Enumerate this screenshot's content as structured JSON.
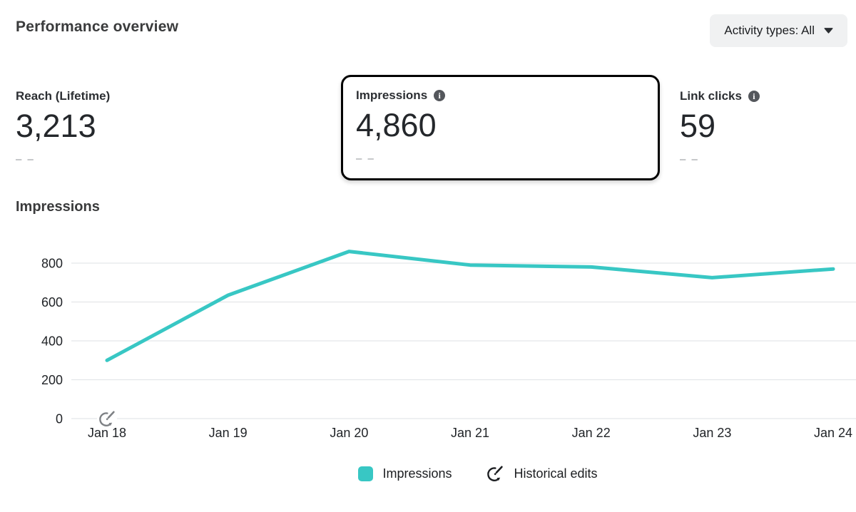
{
  "header": {
    "title": "Performance overview",
    "activity_filter_label": "Activity types: All"
  },
  "icons": {
    "info_glyph": "i"
  },
  "metrics": [
    {
      "label": "Reach (Lifetime)",
      "value": "3,213",
      "delta": "– –",
      "has_info": false,
      "selected": false
    },
    {
      "label": "Impressions",
      "value": "4,860",
      "delta": "– –",
      "has_info": true,
      "selected": true
    },
    {
      "label": "Link clicks",
      "value": "59",
      "delta": "– –",
      "has_info": true,
      "selected": false
    }
  ],
  "chart_section_title": "Impressions",
  "chart_data": {
    "type": "line",
    "title": "Impressions",
    "categories": [
      "Jan 18",
      "Jan 19",
      "Jan 20",
      "Jan 21",
      "Jan 22",
      "Jan 23",
      "Jan 24"
    ],
    "series": [
      {
        "name": "Impressions",
        "values": [
          300,
          635,
          860,
          790,
          780,
          725,
          770
        ]
      }
    ],
    "ylim": [
      0,
      800
    ],
    "yticks": [
      0,
      200,
      400,
      600,
      800
    ],
    "grid": "horizontal",
    "line_color": "#38c7c4",
    "grid_color": "#e4e6e9",
    "marker_color": "#7e8185",
    "historical_edits": [
      "Jan 18"
    ],
    "legend": [
      {
        "label": "Impressions",
        "type": "swatch"
      },
      {
        "label": "Historical edits",
        "type": "icon"
      }
    ],
    "legend_position": "bottom-center"
  }
}
